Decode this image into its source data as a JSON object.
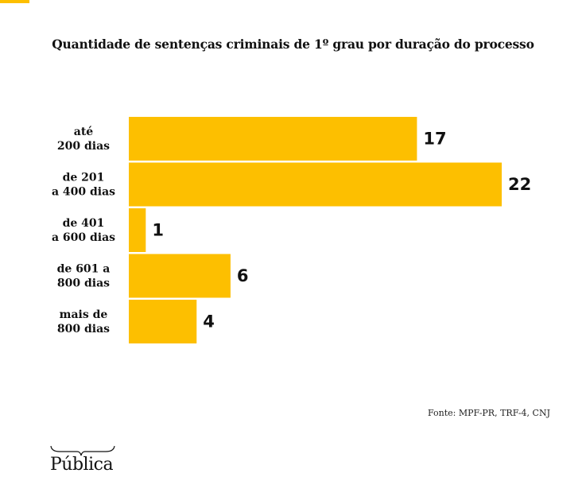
{
  "header": {
    "accent_color": "#fdbf00"
  },
  "chart_data": {
    "type": "bar",
    "orientation": "horizontal",
    "title": "Quantidade de sentenças criminais de 1º grau por duração do processo",
    "categories": [
      [
        "até",
        "200 dias"
      ],
      [
        "de 201",
        "a 400 dias"
      ],
      [
        "de 401",
        "a 600 dias"
      ],
      [
        "de 601 a",
        "800 dias"
      ],
      [
        "mais de",
        "800 dias"
      ]
    ],
    "values": [
      17,
      22,
      1,
      6,
      4
    ],
    "bar_color": "#fdbf00",
    "xlabel": "",
    "ylabel": "",
    "xlim": [
      0,
      22
    ],
    "grid": false,
    "legend": "none"
  },
  "footer": {
    "source": "Fonte: MPF-PR, TRF-4, CNJ",
    "logo": "Pública"
  }
}
